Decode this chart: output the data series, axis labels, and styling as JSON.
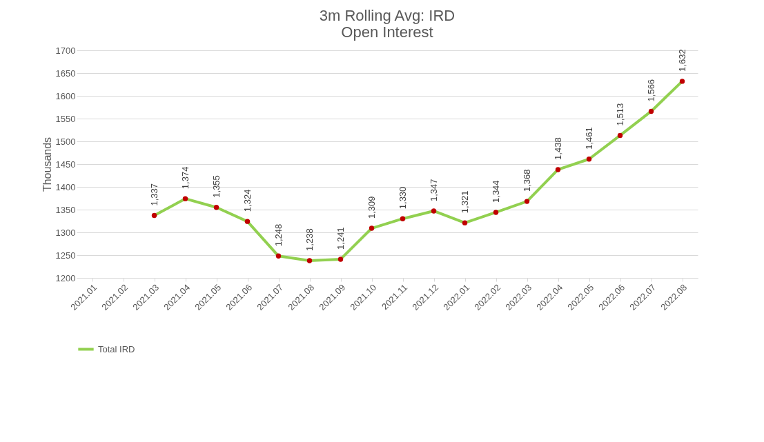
{
  "chart_data": {
    "type": "line",
    "title": "3m Rolling Avg: IRD\nOpen Interest",
    "ylabel": "Thousands",
    "categories": [
      "2021.01",
      "2021.02",
      "2021.03",
      "2021.04",
      "2021.05",
      "2021.06",
      "2021.07",
      "2021.08",
      "2021.09",
      "2021.10",
      "2021.11",
      "2021.12",
      "2022.01",
      "2022.02",
      "2022.03",
      "2022.04",
      "2022.05",
      "2022.06",
      "2022.07",
      "2022.08"
    ],
    "series": [
      {
        "name": "Total IRD",
        "color": "#92d050",
        "values": [
          null,
          null,
          1337,
          1374,
          1355,
          1324,
          1248,
          1238,
          1241,
          1309,
          1330,
          1347,
          1321,
          1344,
          1368,
          1438,
          1461,
          1513,
          1566,
          1632
        ],
        "value_labels": [
          null,
          null,
          "1,337",
          "1,374",
          "1,355",
          "1,324",
          "1,248",
          "1,238",
          "1,241",
          "1,309",
          "1,330",
          "1,347",
          "1,321",
          "1,344",
          "1,368",
          "1,438",
          "1,461",
          "1,513",
          "1,566",
          "1,632"
        ]
      }
    ],
    "ylim": [
      1200,
      1700
    ],
    "yticks": [
      1200,
      1250,
      1300,
      1350,
      1400,
      1450,
      1500,
      1550,
      1600,
      1650,
      1700
    ],
    "grid": "y",
    "legend": "bottom",
    "marker": "circle",
    "line_style": "solid"
  }
}
